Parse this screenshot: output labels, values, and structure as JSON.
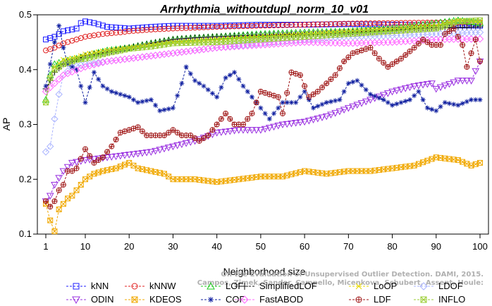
{
  "chart_data": {
    "type": "line",
    "title": "Arrhythmia_withoutdupl_norm_10_v01",
    "xlabel": "Neighborhood size",
    "ylabel": "AP",
    "xlim": [
      1,
      100
    ],
    "ylim": [
      0.1,
      0.5
    ],
    "xticks": [
      1,
      10,
      20,
      30,
      40,
      50,
      60,
      70,
      80,
      90,
      100
    ],
    "yticks": [
      0.1,
      0.2,
      0.3,
      0.4,
      0.5
    ],
    "grid": false,
    "legend_position": "bottom",
    "watermark": "Campos, Zimek, Sander, Campello, Micenkova, Schubert, Assent, Houle: On the Evaluation of Unsupervised Outlier Detection. DAMI, 2015.",
    "series": [
      {
        "name": "kNN",
        "color": "#1f1fff",
        "marker": "square",
        "points": [
          [
            1,
            0.455
          ],
          [
            3,
            0.46
          ],
          [
            5,
            0.47
          ],
          [
            8,
            0.475
          ],
          [
            9,
            0.485
          ],
          [
            10,
            0.488
          ],
          [
            12,
            0.485
          ],
          [
            15,
            0.478
          ],
          [
            20,
            0.475
          ],
          [
            25,
            0.478
          ],
          [
            30,
            0.48
          ],
          [
            40,
            0.48
          ],
          [
            50,
            0.482
          ],
          [
            60,
            0.482
          ],
          [
            70,
            0.483
          ],
          [
            80,
            0.482
          ],
          [
            90,
            0.481
          ],
          [
            100,
            0.48
          ]
        ]
      },
      {
        "name": "kNNW",
        "color": "#e02020",
        "marker": "circle",
        "points": [
          [
            1,
            0.435
          ],
          [
            3,
            0.44
          ],
          [
            5,
            0.448
          ],
          [
            8,
            0.455
          ],
          [
            10,
            0.46
          ],
          [
            14,
            0.465
          ],
          [
            18,
            0.468
          ],
          [
            20,
            0.47
          ],
          [
            25,
            0.473
          ],
          [
            30,
            0.475
          ],
          [
            40,
            0.478
          ],
          [
            50,
            0.48
          ],
          [
            60,
            0.482
          ],
          [
            70,
            0.484
          ],
          [
            80,
            0.485
          ],
          [
            90,
            0.486
          ],
          [
            100,
            0.486
          ]
        ]
      },
      {
        "name": "LOF",
        "color": "#22cc22",
        "marker": "triangle-up",
        "points": [
          [
            1,
            0.345
          ],
          [
            2,
            0.39
          ],
          [
            3,
            0.41
          ],
          [
            5,
            0.415
          ],
          [
            8,
            0.42
          ],
          [
            10,
            0.425
          ],
          [
            15,
            0.435
          ],
          [
            20,
            0.44
          ],
          [
            25,
            0.448
          ],
          [
            30,
            0.455
          ],
          [
            35,
            0.458
          ],
          [
            40,
            0.46
          ],
          [
            50,
            0.465
          ],
          [
            60,
            0.468
          ],
          [
            70,
            0.47
          ],
          [
            80,
            0.475
          ],
          [
            90,
            0.485
          ],
          [
            95,
            0.49
          ],
          [
            100,
            0.485
          ]
        ]
      },
      {
        "name": "SimplifiedLOF",
        "color": "#111111",
        "marker": "plus",
        "points": [
          [
            1,
            0.365
          ],
          [
            2,
            0.38
          ],
          [
            3,
            0.395
          ],
          [
            5,
            0.41
          ],
          [
            8,
            0.418
          ],
          [
            10,
            0.425
          ],
          [
            15,
            0.432
          ],
          [
            20,
            0.44
          ],
          [
            25,
            0.448
          ],
          [
            30,
            0.455
          ],
          [
            35,
            0.458
          ],
          [
            40,
            0.46
          ],
          [
            50,
            0.463
          ],
          [
            60,
            0.465
          ],
          [
            70,
            0.468
          ],
          [
            80,
            0.472
          ],
          [
            90,
            0.476
          ],
          [
            100,
            0.478
          ]
        ]
      },
      {
        "name": "LoOP",
        "color": "#e8d800",
        "marker": "cross",
        "points": [
          [
            1,
            0.34
          ],
          [
            2,
            0.385
          ],
          [
            3,
            0.405
          ],
          [
            5,
            0.418
          ],
          [
            8,
            0.422
          ],
          [
            10,
            0.428
          ],
          [
            15,
            0.435
          ],
          [
            20,
            0.44
          ],
          [
            30,
            0.45
          ],
          [
            40,
            0.455
          ],
          [
            50,
            0.46
          ],
          [
            60,
            0.465
          ],
          [
            70,
            0.47
          ],
          [
            80,
            0.475
          ],
          [
            90,
            0.48
          ],
          [
            95,
            0.49
          ],
          [
            100,
            0.487
          ]
        ]
      },
      {
        "name": "LDOF",
        "color": "#aab4ff",
        "marker": "diamond",
        "points": [
          [
            1,
            0.25
          ],
          [
            2,
            0.26
          ],
          [
            3,
            0.31
          ],
          [
            4,
            0.355
          ],
          [
            5,
            0.39
          ],
          [
            7,
            0.405
          ],
          [
            10,
            0.41
          ],
          [
            15,
            0.415
          ],
          [
            20,
            0.42
          ],
          [
            30,
            0.43
          ],
          [
            40,
            0.44
          ],
          [
            50,
            0.448
          ],
          [
            60,
            0.455
          ],
          [
            70,
            0.46
          ],
          [
            80,
            0.462
          ],
          [
            90,
            0.465
          ],
          [
            100,
            0.468
          ]
        ]
      },
      {
        "name": "ODIN",
        "color": "#9a30e0",
        "marker": "triangle-down",
        "points": [
          [
            1,
            0.16
          ],
          [
            2,
            0.17
          ],
          [
            3,
            0.19
          ],
          [
            5,
            0.215
          ],
          [
            7,
            0.23
          ],
          [
            10,
            0.235
          ],
          [
            15,
            0.24
          ],
          [
            20,
            0.245
          ],
          [
            25,
            0.25
          ],
          [
            30,
            0.26
          ],
          [
            35,
            0.27
          ],
          [
            40,
            0.285
          ],
          [
            45,
            0.29
          ],
          [
            50,
            0.29
          ],
          [
            55,
            0.3
          ],
          [
            60,
            0.305
          ],
          [
            65,
            0.315
          ],
          [
            70,
            0.33
          ],
          [
            75,
            0.345
          ],
          [
            80,
            0.36
          ],
          [
            85,
            0.37
          ],
          [
            89,
            0.375
          ],
          [
            90,
            0.365
          ],
          [
            95,
            0.38
          ],
          [
            98,
            0.38
          ],
          [
            100,
            0.415
          ]
        ]
      },
      {
        "name": "KDEOS",
        "color": "#f0a800",
        "marker": "square-x",
        "points": [
          [
            1,
            0.155
          ],
          [
            2,
            0.125
          ],
          [
            3,
            0.105
          ],
          [
            4,
            0.145
          ],
          [
            5,
            0.155
          ],
          [
            6,
            0.165
          ],
          [
            7,
            0.17
          ],
          [
            8,
            0.18
          ],
          [
            10,
            0.2
          ],
          [
            12,
            0.21
          ],
          [
            14,
            0.215
          ],
          [
            17,
            0.22
          ],
          [
            20,
            0.23
          ],
          [
            22,
            0.22
          ],
          [
            25,
            0.215
          ],
          [
            28,
            0.21
          ],
          [
            30,
            0.2
          ],
          [
            35,
            0.2
          ],
          [
            40,
            0.195
          ],
          [
            45,
            0.2
          ],
          [
            50,
            0.205
          ],
          [
            55,
            0.205
          ],
          [
            60,
            0.215
          ],
          [
            65,
            0.21
          ],
          [
            70,
            0.215
          ],
          [
            75,
            0.215
          ],
          [
            80,
            0.22
          ],
          [
            85,
            0.225
          ],
          [
            90,
            0.24
          ],
          [
            95,
            0.235
          ],
          [
            98,
            0.225
          ],
          [
            100,
            0.23
          ]
        ]
      },
      {
        "name": "COF",
        "color": "#1020a0",
        "marker": "star",
        "points": [
          [
            1,
            0.37
          ],
          [
            3,
            0.45
          ],
          [
            4,
            0.48
          ],
          [
            5,
            0.44
          ],
          [
            6,
            0.41
          ],
          [
            8,
            0.4
          ],
          [
            10,
            0.34
          ],
          [
            12,
            0.395
          ],
          [
            14,
            0.37
          ],
          [
            16,
            0.36
          ],
          [
            18,
            0.355
          ],
          [
            20,
            0.35
          ],
          [
            22,
            0.34
          ],
          [
            25,
            0.345
          ],
          [
            27,
            0.325
          ],
          [
            30,
            0.33
          ],
          [
            32,
            0.375
          ],
          [
            33,
            0.405
          ],
          [
            35,
            0.38
          ],
          [
            37,
            0.37
          ],
          [
            40,
            0.35
          ],
          [
            42,
            0.385
          ],
          [
            44,
            0.395
          ],
          [
            46,
            0.37
          ],
          [
            48,
            0.35
          ],
          [
            50,
            0.33
          ],
          [
            52,
            0.31
          ],
          [
            55,
            0.34
          ],
          [
            58,
            0.34
          ],
          [
            60,
            0.36
          ],
          [
            62,
            0.33
          ],
          [
            65,
            0.34
          ],
          [
            68,
            0.345
          ],
          [
            70,
            0.375
          ],
          [
            72,
            0.38
          ],
          [
            75,
            0.355
          ],
          [
            78,
            0.345
          ],
          [
            80,
            0.335
          ],
          [
            82,
            0.34
          ],
          [
            84,
            0.345
          ],
          [
            86,
            0.36
          ],
          [
            88,
            0.33
          ],
          [
            90,
            0.325
          ],
          [
            92,
            0.34
          ],
          [
            95,
            0.335
          ],
          [
            98,
            0.345
          ],
          [
            100,
            0.345
          ]
        ]
      },
      {
        "name": "FastABOD",
        "color": "#ff66ff",
        "marker": "diamond",
        "points": [
          [
            1,
            0.36
          ],
          [
            3,
            0.375
          ],
          [
            5,
            0.39
          ],
          [
            10,
            0.405
          ],
          [
            15,
            0.415
          ],
          [
            20,
            0.42
          ],
          [
            30,
            0.43
          ],
          [
            40,
            0.44
          ],
          [
            50,
            0.445
          ],
          [
            60,
            0.45
          ],
          [
            70,
            0.448
          ],
          [
            80,
            0.45
          ],
          [
            90,
            0.455
          ],
          [
            100,
            0.456
          ]
        ]
      },
      {
        "name": "LDF",
        "color": "#a01818",
        "marker": "circle-plus",
        "points": [
          [
            1,
            0.16
          ],
          [
            2,
            0.15
          ],
          [
            3,
            0.16
          ],
          [
            4,
            0.18
          ],
          [
            5,
            0.19
          ],
          [
            6,
            0.215
          ],
          [
            7,
            0.215
          ],
          [
            8,
            0.22
          ],
          [
            10,
            0.255
          ],
          [
            12,
            0.23
          ],
          [
            14,
            0.24
          ],
          [
            16,
            0.26
          ],
          [
            18,
            0.285
          ],
          [
            20,
            0.29
          ],
          [
            22,
            0.295
          ],
          [
            24,
            0.28
          ],
          [
            26,
            0.28
          ],
          [
            28,
            0.28
          ],
          [
            30,
            0.29
          ],
          [
            32,
            0.28
          ],
          [
            34,
            0.28
          ],
          [
            36,
            0.27
          ],
          [
            38,
            0.28
          ],
          [
            40,
            0.3
          ],
          [
            42,
            0.32
          ],
          [
            44,
            0.3
          ],
          [
            46,
            0.3
          ],
          [
            48,
            0.32
          ],
          [
            50,
            0.36
          ],
          [
            52,
            0.355
          ],
          [
            54,
            0.35
          ],
          [
            55,
            0.32
          ],
          [
            57,
            0.395
          ],
          [
            59,
            0.39
          ],
          [
            61,
            0.35
          ],
          [
            63,
            0.36
          ],
          [
            65,
            0.375
          ],
          [
            67,
            0.39
          ],
          [
            69,
            0.415
          ],
          [
            71,
            0.43
          ],
          [
            73,
            0.435
          ],
          [
            75,
            0.44
          ],
          [
            77,
            0.42
          ],
          [
            79,
            0.405
          ],
          [
            80,
            0.41
          ],
          [
            82,
            0.42
          ],
          [
            85,
            0.44
          ],
          [
            87,
            0.455
          ],
          [
            89,
            0.445
          ],
          [
            91,
            0.445
          ],
          [
            92,
            0.465
          ],
          [
            94,
            0.475
          ],
          [
            96,
            0.445
          ],
          [
            97,
            0.405
          ],
          [
            99,
            0.455
          ],
          [
            100,
            0.415
          ]
        ]
      },
      {
        "name": "INFLO",
        "color": "#9acd32",
        "marker": "square-x",
        "points": [
          [
            1,
            0.34
          ],
          [
            2,
            0.385
          ],
          [
            3,
            0.4
          ],
          [
            5,
            0.41
          ],
          [
            8,
            0.418
          ],
          [
            10,
            0.42
          ],
          [
            15,
            0.43
          ],
          [
            20,
            0.438
          ],
          [
            25,
            0.442
          ],
          [
            30,
            0.448
          ],
          [
            40,
            0.45
          ],
          [
            50,
            0.455
          ],
          [
            60,
            0.46
          ],
          [
            70,
            0.465
          ],
          [
            80,
            0.47
          ],
          [
            90,
            0.475
          ],
          [
            95,
            0.488
          ],
          [
            100,
            0.49
          ]
        ]
      }
    ]
  }
}
